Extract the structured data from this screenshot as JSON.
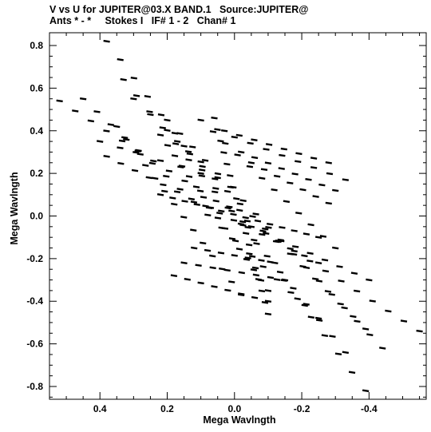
{
  "header": {
    "line1": "V vs U for JUPITER@03.X BAND.1   Source:JUPITER@",
    "line2": "Ants * - *     Stokes I   IF# 1 - 2   Chan# 1"
  },
  "chart_data": {
    "type": "scatter",
    "xlabel": "Mega Wavlngth",
    "ylabel": "Mega Wavlngth",
    "xlim": [
      0.55,
      -0.57
    ],
    "ylim": [
      -0.86,
      0.86
    ],
    "x_reversed": true,
    "xticks": [
      0.4,
      0.2,
      0.0,
      -0.2,
      -0.4
    ],
    "xtick_labels": [
      "0.4",
      "0.2",
      "0.0",
      "-0.2",
      "-0.4"
    ],
    "yticks": [
      0.8,
      0.6,
      0.4,
      0.2,
      0.0,
      -0.2,
      -0.4,
      -0.6,
      -0.8
    ],
    "ytick_labels": [
      "0.8",
      "0.6",
      "0.4",
      "0.2",
      "0.0",
      "-0.2",
      "-0.4",
      "-0.6",
      "-0.8"
    ],
    "grid": false,
    "marker_color": "#000000",
    "tracks": [
      {
        "start": [
          0.38,
          0.82
        ],
        "end": [
          -0.39,
          -0.82
        ],
        "count": 20
      },
      {
        "start": [
          0.52,
          0.54
        ],
        "end": [
          -0.55,
          -0.54
        ],
        "count": 24
      },
      {
        "start": [
          0.45,
          0.55
        ],
        "end": [
          -0.25,
          -0.48
        ],
        "count": 18
      },
      {
        "start": [
          0.33,
          0.64
        ],
        "end": [
          -0.33,
          -0.64
        ],
        "count": 18
      },
      {
        "start": [
          0.2,
          0.45
        ],
        "end": [
          -0.44,
          -0.62
        ],
        "count": 18
      },
      {
        "start": [
          0.17,
          0.35
        ],
        "end": [
          -0.39,
          -0.53
        ],
        "count": 16
      },
      {
        "start": [
          0.35,
          0.42
        ],
        "end": [
          -0.02,
          -0.37
        ],
        "count": 14
      },
      {
        "start": [
          0.1,
          0.45
        ],
        "end": [
          -0.3,
          -0.15
        ],
        "count": 12
      },
      {
        "start": [
          0.22,
          0.1
        ],
        "end": [
          -0.25,
          -0.1
        ],
        "count": 14
      },
      {
        "start": [
          0.38,
          0.28
        ],
        "end": [
          -0.25,
          -0.22
        ],
        "count": 16
      },
      {
        "start": [
          0.06,
          0.46
        ],
        "end": [
          -0.1,
          -0.46
        ],
        "count": 18
      },
      {
        "start": [
          0.22,
          0.38
        ],
        "end": [
          -0.1,
          -0.35
        ],
        "count": 16
      },
      {
        "start": [
          0.0,
          0.37
        ],
        "end": [
          -0.33,
          0.17
        ],
        "count": 8
      },
      {
        "start": [
          -0.02,
          0.3
        ],
        "end": [
          -0.3,
          0.12
        ],
        "count": 8
      },
      {
        "start": [
          -0.05,
          0.25
        ],
        "end": [
          -0.28,
          0.06
        ],
        "count": 7
      },
      {
        "start": [
          0.18,
          -0.28
        ],
        "end": [
          -0.1,
          -0.4
        ],
        "count": 8
      },
      {
        "start": [
          0.15,
          -0.22
        ],
        "end": [
          -0.15,
          -0.3
        ],
        "count": 8
      },
      {
        "start": [
          0.12,
          -0.15
        ],
        "end": [
          -0.12,
          -0.22
        ],
        "count": 7
      },
      {
        "start": [
          0.4,
          0.35
        ],
        "end": [
          0.1,
          0.2
        ],
        "count": 6
      },
      {
        "start": [
          0.3,
          0.55
        ],
        "end": [
          0.05,
          0.18
        ],
        "count": 6
      },
      {
        "start": [
          0.03,
          0.4
        ],
        "end": [
          -0.28,
          0.25
        ],
        "count": 8
      },
      {
        "start": [
          -0.05,
          -0.05
        ],
        "end": [
          -0.4,
          -0.3
        ],
        "count": 9
      }
    ]
  }
}
